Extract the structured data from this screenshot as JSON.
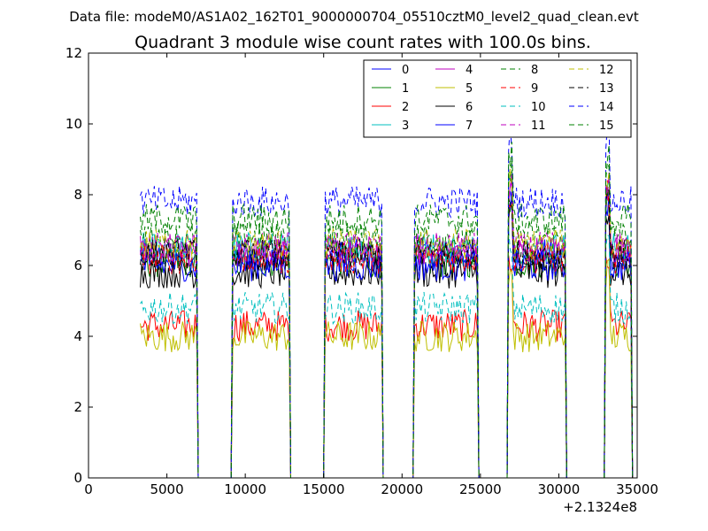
{
  "figure": {
    "suptitle": "Data file: modeM0/AS1A02_162T01_9000000704_05510cztM0_level2_quad_clean.evt"
  },
  "chart_data": {
    "type": "line",
    "title": "Quadrant 3 module wise count rates with 100.0s bins.",
    "xlabel": "",
    "ylabel": "",
    "x_offset_label": "+2.1324e8",
    "xlim": [
      0,
      35000
    ],
    "ylim": [
      0,
      12
    ],
    "grid": false,
    "legend": {
      "placement": "top-right",
      "ncol": 4
    },
    "x_ticks": [
      "0",
      "5000",
      "10000",
      "15000",
      "20000",
      "25000",
      "30000",
      "35000"
    ],
    "y_ticks": [
      "0",
      "2",
      "4",
      "6",
      "8",
      "10",
      "12"
    ],
    "x_tick_values": [
      0,
      5000,
      10000,
      15000,
      20000,
      25000,
      30000,
      35000
    ],
    "y_tick_values": [
      0,
      2,
      4,
      6,
      8,
      10,
      12
    ],
    "segments": [
      {
        "start": 3300,
        "end": 6900
      },
      {
        "start": 9200,
        "end": 12800
      },
      {
        "start": 15100,
        "end": 18700
      },
      {
        "start": 20800,
        "end": 24800
      },
      {
        "start": 26800,
        "end": 30400
      },
      {
        "start": 33000,
        "end": 34600
      }
    ],
    "series": [
      {
        "name": "0",
        "color": "#0000ff",
        "dash": "solid",
        "level": 6.3
      },
      {
        "name": "1",
        "color": "#008000",
        "dash": "solid",
        "level": 6.1
      },
      {
        "name": "2",
        "color": "#ff0000",
        "dash": "solid",
        "level": 4.3
      },
      {
        "name": "3",
        "color": "#00bfbf",
        "dash": "solid",
        "level": 6.5
      },
      {
        "name": "4",
        "color": "#bf00bf",
        "dash": "solid",
        "level": 6.4
      },
      {
        "name": "5",
        "color": "#bfbf00",
        "dash": "solid",
        "level": 4.0
      },
      {
        "name": "6",
        "color": "#000000",
        "dash": "solid",
        "level": 5.8
      },
      {
        "name": "7",
        "color": "#0000ff",
        "dash": "solid",
        "level": 6.0
      },
      {
        "name": "8",
        "color": "#008000",
        "dash": "dashed",
        "level": 6.8
      },
      {
        "name": "9",
        "color": "#ff0000",
        "dash": "dashed",
        "level": 6.2
      },
      {
        "name": "10",
        "color": "#00bfbf",
        "dash": "dashed",
        "level": 4.8
      },
      {
        "name": "11",
        "color": "#bf00bf",
        "dash": "dashed",
        "level": 6.5
      },
      {
        "name": "12",
        "color": "#bfbf00",
        "dash": "dashed",
        "level": 6.6
      },
      {
        "name": "13",
        "color": "#000000",
        "dash": "dashed",
        "level": 6.3
      },
      {
        "name": "14",
        "color": "#0000ff",
        "dash": "dashed",
        "level": 7.8
      },
      {
        "name": "15",
        "color": "#008000",
        "dash": "dashed",
        "level": 7.3
      }
    ]
  }
}
